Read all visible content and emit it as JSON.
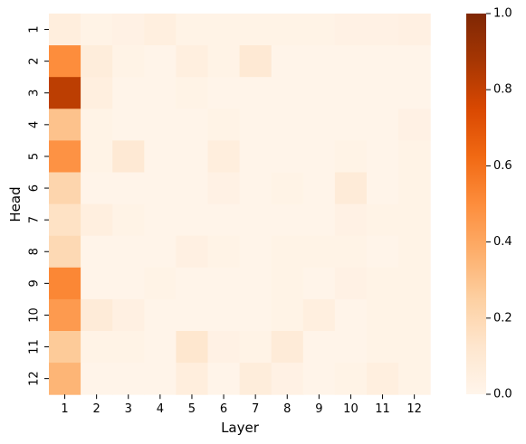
{
  "chart_data": {
    "type": "heatmap",
    "xlabel": "Layer",
    "ylabel": "Head",
    "x_categories": [
      "1",
      "2",
      "3",
      "4",
      "5",
      "6",
      "7",
      "8",
      "9",
      "10",
      "11",
      "12"
    ],
    "y_categories": [
      "1",
      "2",
      "3",
      "4",
      "5",
      "6",
      "7",
      "8",
      "9",
      "10",
      "11",
      "12"
    ],
    "colormap": "Oranges",
    "color_range": [
      0.0,
      1.0
    ],
    "colorbar_ticks": [
      "0.0",
      "0.2",
      "0.4",
      "0.6",
      "0.8",
      "1.0"
    ],
    "values": [
      [
        0.06,
        0.02,
        0.03,
        0.05,
        0.02,
        0.02,
        0.02,
        0.02,
        0.02,
        0.03,
        0.03,
        0.04
      ],
      [
        0.5,
        0.07,
        0.02,
        0.01,
        0.05,
        0.02,
        0.1,
        0.01,
        0.01,
        0.01,
        0.01,
        0.01
      ],
      [
        0.82,
        0.05,
        0.01,
        0.01,
        0.02,
        0.01,
        0.01,
        0.01,
        0.01,
        0.01,
        0.01,
        0.01
      ],
      [
        0.3,
        0.02,
        0.01,
        0.01,
        0.01,
        0.02,
        0.01,
        0.01,
        0.01,
        0.01,
        0.01,
        0.03
      ],
      [
        0.48,
        0.02,
        0.1,
        0.01,
        0.01,
        0.06,
        0.01,
        0.01,
        0.01,
        0.02,
        0.01,
        0.02
      ],
      [
        0.22,
        0.01,
        0.01,
        0.01,
        0.01,
        0.03,
        0.01,
        0.02,
        0.01,
        0.08,
        0.01,
        0.02
      ],
      [
        0.15,
        0.05,
        0.02,
        0.01,
        0.01,
        0.01,
        0.01,
        0.01,
        0.01,
        0.03,
        0.02,
        0.02
      ],
      [
        0.2,
        0.01,
        0.01,
        0.01,
        0.04,
        0.02,
        0.01,
        0.02,
        0.02,
        0.02,
        0.01,
        0.02
      ],
      [
        0.52,
        0.01,
        0.01,
        0.02,
        0.01,
        0.01,
        0.01,
        0.02,
        0.01,
        0.03,
        0.02,
        0.02
      ],
      [
        0.45,
        0.08,
        0.04,
        0.01,
        0.01,
        0.01,
        0.01,
        0.02,
        0.05,
        0.01,
        0.02,
        0.02
      ],
      [
        0.27,
        0.02,
        0.02,
        0.01,
        0.12,
        0.03,
        0.02,
        0.08,
        0.01,
        0.01,
        0.02,
        0.02
      ],
      [
        0.35,
        0.01,
        0.01,
        0.01,
        0.06,
        0.01,
        0.07,
        0.03,
        0.01,
        0.02,
        0.05,
        0.02
      ]
    ]
  }
}
